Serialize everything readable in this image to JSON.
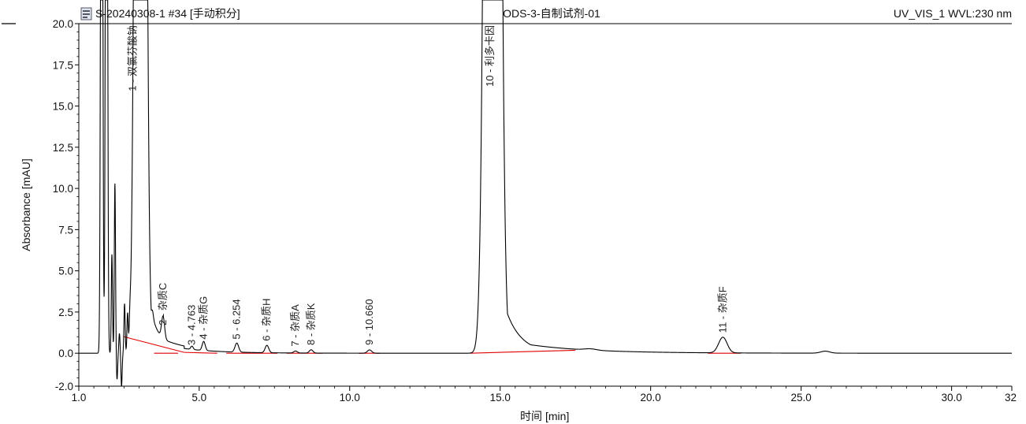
{
  "header": {
    "icon": "chromatogram-file-icon",
    "sample": "S-20240308-1 #34 [手动积分]",
    "method": "ODS-3-自制试剂-01",
    "channel": "UV_VIS_1 WVL:230 nm"
  },
  "chart_data": {
    "type": "line",
    "ylabel": "Absorbance [mAU]",
    "xlabel_text": "时间",
    "xlabel_unit": "[min]",
    "xlim": [
      1.0,
      32.0
    ],
    "ylim": [
      -2.0,
      20.0
    ],
    "x_ticks": [
      "1.0",
      "5.0",
      "10.0",
      "15.0",
      "20.0",
      "25.0",
      "30.0",
      "32"
    ],
    "x_tick_values": [
      1.0,
      5.0,
      10.0,
      15.0,
      20.0,
      25.0,
      30.0,
      32.0
    ],
    "y_ticks": [
      "20.0",
      "17.5",
      "15.0",
      "12.5",
      "10.0",
      "7.5",
      "5.0",
      "2.5",
      "0.0",
      "-2.0"
    ],
    "y_tick_values": [
      20.0,
      17.5,
      15.0,
      12.5,
      10.0,
      7.5,
      5.0,
      2.5,
      0.0,
      -2.0
    ],
    "trace_color": "#000000",
    "baseline_color": "#e00000",
    "peaks": [
      {
        "n": "1",
        "label": "1 - 双氯芬酸钠",
        "rt": 3.05,
        "height": 160.0,
        "width": 0.12,
        "tail": 0.3
      },
      {
        "n": "2",
        "label": "2 - 杂质C",
        "rt": 3.8,
        "height": 1.4,
        "width": 0.05,
        "tail": 0.05
      },
      {
        "n": "3",
        "label": "3 - 4.763",
        "rt": 4.76,
        "height": 0.2,
        "width": 0.04,
        "tail": 0.03
      },
      {
        "n": "4",
        "label": "4 - 杂质G",
        "rt": 5.15,
        "height": 0.55,
        "width": 0.05,
        "tail": 0.04
      },
      {
        "n": "5",
        "label": "5 - 6.254",
        "rt": 6.25,
        "height": 0.55,
        "width": 0.06,
        "tail": 0.04
      },
      {
        "n": "6",
        "label": "6 - 杂质H",
        "rt": 7.25,
        "height": 0.45,
        "width": 0.06,
        "tail": 0.04
      },
      {
        "n": "7",
        "label": "7 - 杂质A",
        "rt": 8.2,
        "height": 0.12,
        "width": 0.06,
        "tail": 0.04
      },
      {
        "n": "8",
        "label": "8 - 杂质K",
        "rt": 8.72,
        "height": 0.2,
        "width": 0.06,
        "tail": 0.04
      },
      {
        "n": "9",
        "label": "9 - 10.660",
        "rt": 10.66,
        "height": 0.2,
        "width": 0.07,
        "tail": 0.05
      },
      {
        "n": "10",
        "label": "10 - 利多卡因",
        "rt": 14.75,
        "height": 160.0,
        "width": 0.17,
        "tail": 0.5
      },
      {
        "n": "11",
        "label": "11 - 杂质F",
        "rt": 22.4,
        "height": 0.95,
        "width": 0.14,
        "tail": 0.08
      }
    ],
    "baselines": [
      {
        "x": [
          2.5,
          4.5
        ],
        "y": [
          1.0,
          0.05
        ]
      },
      {
        "x": [
          3.5,
          4.3
        ],
        "y": [
          0.0,
          0.0
        ]
      },
      {
        "x": [
          4.5,
          5.6
        ],
        "y": [
          0.05,
          0.0
        ]
      },
      {
        "x": [
          5.9,
          7.6
        ],
        "y": [
          0.0,
          0.0
        ]
      },
      {
        "x": [
          7.9,
          9.1
        ],
        "y": [
          0.0,
          0.0
        ]
      },
      {
        "x": [
          10.3,
          11.0
        ],
        "y": [
          0.0,
          0.0
        ]
      },
      {
        "x": [
          14.0,
          17.5
        ],
        "y": [
          0.0,
          0.18
        ]
      },
      {
        "x": [
          21.9,
          23.0
        ],
        "y": [
          0.0,
          0.0
        ]
      }
    ],
    "solvent_front": [
      {
        "rt": 1.76,
        "height": 60.0,
        "width": 0.03
      },
      {
        "rt": 1.92,
        "height": 60.0,
        "width": 0.03
      },
      {
        "rt": 2.1,
        "height": 6.0,
        "width": 0.02
      },
      {
        "rt": 2.2,
        "height": 10.3,
        "width": 0.02
      },
      {
        "rt": 2.27,
        "height": -1.6,
        "width": 0.02
      },
      {
        "rt": 2.35,
        "height": 1.2,
        "width": 0.02
      },
      {
        "rt": 2.42,
        "height": -2.0,
        "width": 0.02
      },
      {
        "rt": 2.52,
        "height": 3.0,
        "width": 0.02
      },
      {
        "rt": 2.62,
        "height": 2.2,
        "width": 0.02
      },
      {
        "rt": 2.7,
        "height": 1.0,
        "width": 0.02
      },
      {
        "rt": 3.3,
        "height": 0.5,
        "width": 0.03
      },
      {
        "rt": 3.45,
        "height": 0.4,
        "width": 0.03
      }
    ],
    "minor_bumps": [
      {
        "rt": 18.0,
        "height": 0.08,
        "width": 0.2
      },
      {
        "rt": 25.8,
        "height": 0.12,
        "width": 0.15
      }
    ]
  }
}
